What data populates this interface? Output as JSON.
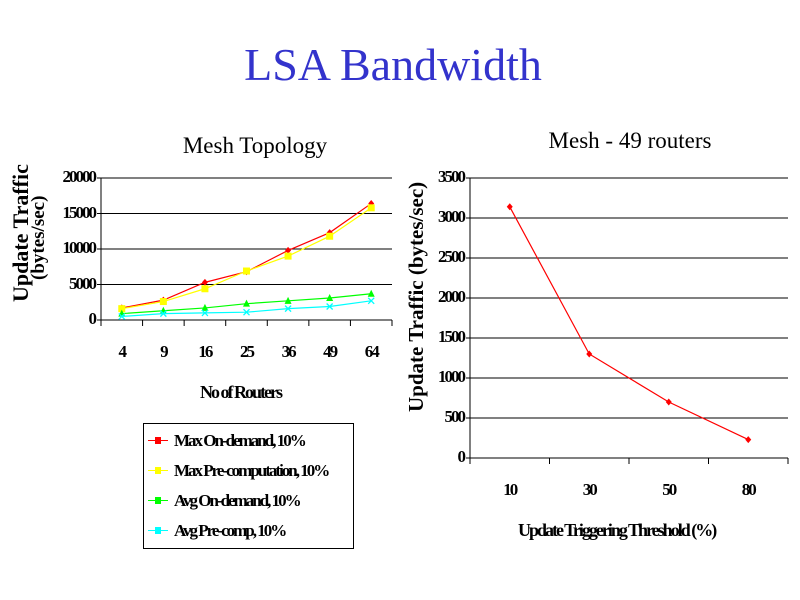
{
  "slide": {
    "title": "LSA Bandwidth",
    "title_color": "#3333CC"
  },
  "chart_data": [
    {
      "type": "line",
      "title": "Mesh Topology",
      "xlabel": "No of Routers",
      "ylabel_line1": "Update Traffic",
      "ylabel_line2": "(bytes/sec)",
      "categories": [
        "4",
        "9",
        "16",
        "25",
        "36",
        "49",
        "64"
      ],
      "yticks": [
        "0",
        "5000",
        "10000",
        "15000",
        "20000"
      ],
      "ylim": [
        0,
        20000
      ],
      "grid": true,
      "legend_position": "bottom",
      "series": [
        {
          "name": "Max On-demand, 10%",
          "color": "#FF0000",
          "marker": "diamond",
          "values": [
            1700,
            2800,
            5300,
            6800,
            9800,
            12300,
            16400
          ]
        },
        {
          "name": "Max Pre-computation, 10%",
          "color": "#FFFF00",
          "marker": "square",
          "values": [
            1600,
            2600,
            4400,
            6900,
            9000,
            11800,
            15800
          ]
        },
        {
          "name": "Avg On-demand, 10%",
          "color": "#00FF00",
          "marker": "triangle",
          "values": [
            900,
            1300,
            1700,
            2300,
            2700,
            3100,
            3700
          ]
        },
        {
          "name": "Avg Pre-comp, 10%",
          "color": "#00FFFF",
          "marker": "x",
          "values": [
            500,
            900,
            1000,
            1100,
            1600,
            1900,
            2700
          ]
        }
      ]
    },
    {
      "type": "line",
      "title": "Mesh - 49 routers",
      "xlabel": "Update Triggering Threshold (%)",
      "ylabel": "Update Traffic (bytes/sec)",
      "categories": [
        "10",
        "30",
        "50",
        "80"
      ],
      "yticks": [
        "0",
        "500",
        "1000",
        "1500",
        "2000",
        "2500",
        "3000",
        "3500"
      ],
      "ylim": [
        0,
        3500
      ],
      "grid": true,
      "series": [
        {
          "name": "Update Traffic",
          "color": "#FF0000",
          "marker": "diamond",
          "values": [
            3140,
            1300,
            700,
            230
          ]
        }
      ]
    }
  ]
}
